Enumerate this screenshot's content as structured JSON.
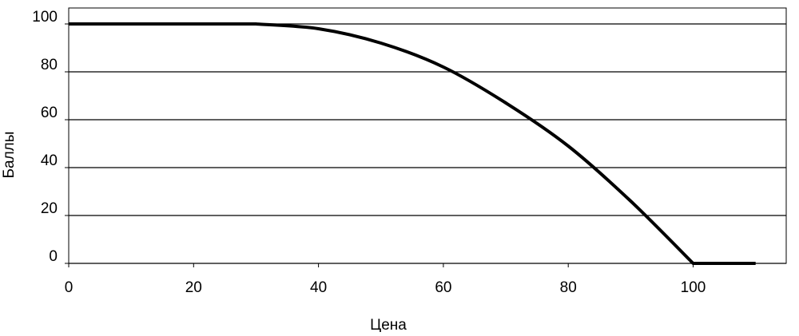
{
  "chart_data": {
    "type": "line",
    "title": "",
    "xlabel": "Цена",
    "ylabel": "Баллы",
    "xlim": [
      0,
      115
    ],
    "ylim": [
      0,
      105
    ],
    "xticks": [
      0,
      20,
      40,
      60,
      80,
      100
    ],
    "yticks": [
      0,
      20,
      40,
      60,
      80,
      100
    ],
    "xtick_labels": [
      "0",
      "20",
      "40",
      "60",
      "80",
      "100"
    ],
    "ytick_labels": [
      "0",
      "20",
      "40",
      "60",
      "80",
      "100"
    ],
    "grid": "horizontal",
    "legend": "none",
    "series": [
      {
        "color": "#000000",
        "x": [
          0,
          30,
          40,
          50,
          60,
          70,
          80,
          90,
          100,
          110
        ],
        "y": [
          100,
          100,
          98,
          92,
          82,
          67,
          49,
          26,
          0,
          0
        ]
      }
    ]
  }
}
